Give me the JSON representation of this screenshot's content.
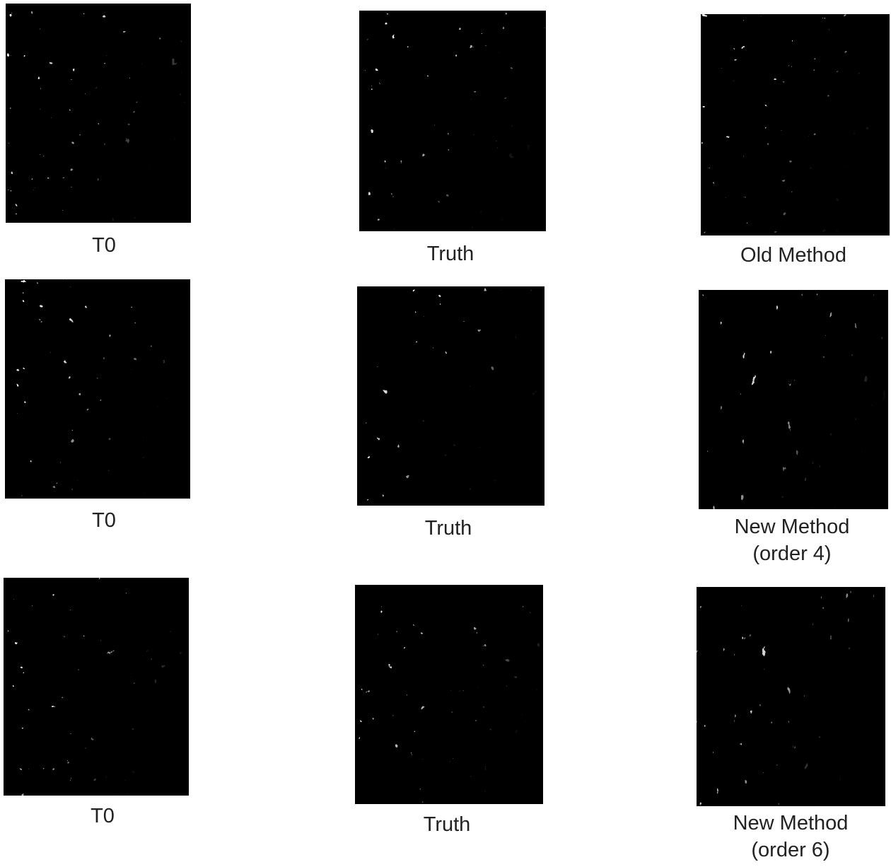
{
  "rows": [
    [
      {
        "caption": [
          "T0"
        ]
      },
      {
        "caption": [
          "Truth"
        ]
      },
      {
        "caption": [
          "Old Method"
        ]
      }
    ],
    [
      {
        "caption": [
          "T0"
        ]
      },
      {
        "caption": [
          "Truth"
        ]
      },
      {
        "caption": [
          "New Method",
          "(order 4)"
        ]
      }
    ],
    [
      {
        "caption": [
          "T0"
        ]
      },
      {
        "caption": [
          "Truth"
        ]
      },
      {
        "caption": [
          "New Method",
          "(order 6)"
        ]
      }
    ]
  ]
}
